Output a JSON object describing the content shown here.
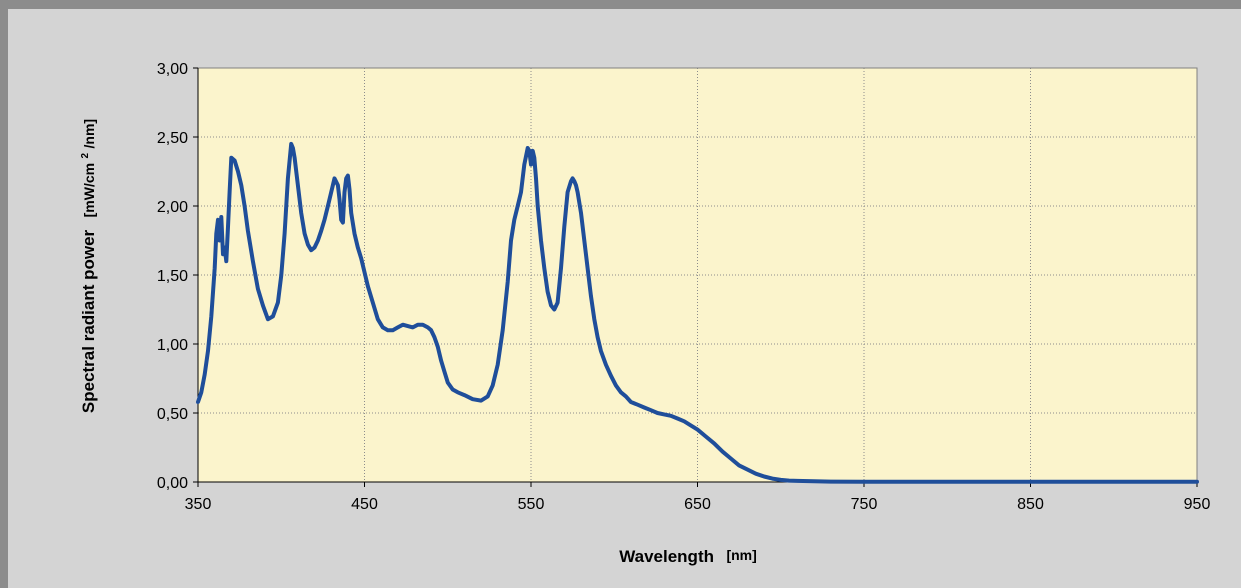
{
  "colors": {
    "outer_border": "#8c8c8c",
    "chart_area": "#d4d4d4",
    "plot_area": "#fbf4cc",
    "series_line": "#1f4e9a",
    "gridline": "#8c8c8c"
  },
  "chart_data": {
    "type": "line",
    "title": "",
    "xlabel": "Wavelength",
    "xlabel_unit": "[nm]",
    "ylabel": "Spectral radiant power",
    "ylabel_unit_pre": "[mW/cm",
    "ylabel_unit_sup": "2",
    "ylabel_unit_post": "/nm]",
    "xlim": [
      350,
      950
    ],
    "ylim": [
      0,
      3
    ],
    "x_ticks": [
      350,
      450,
      550,
      650,
      750,
      850,
      950
    ],
    "x_tick_labels": [
      "350",
      "450",
      "550",
      "650",
      "750",
      "850",
      "950"
    ],
    "y_ticks": [
      0,
      0.5,
      1,
      1.5,
      2,
      2.5,
      3
    ],
    "y_tick_labels": [
      "0,00",
      "0,50",
      "1,00",
      "1,50",
      "2,00",
      "2,50",
      "3,00"
    ],
    "grid": "dotted",
    "legend": "none",
    "series": [
      {
        "x": [
          350,
          352,
          354,
          356,
          358,
          360,
          361,
          362,
          363,
          364,
          365,
          366,
          367,
          368,
          369,
          370,
          372,
          374,
          376,
          378,
          380,
          383,
          386,
          389,
          392,
          395,
          398,
          400,
          402,
          404,
          406,
          407,
          408,
          410,
          412,
          414,
          416,
          418,
          420,
          422,
          424,
          426,
          428,
          430,
          432,
          434,
          435,
          436,
          437,
          438,
          439,
          440,
          441,
          442,
          444,
          446,
          448,
          450,
          452,
          455,
          458,
          461,
          464,
          467,
          470,
          473,
          476,
          479,
          482,
          485,
          488,
          490,
          492,
          494,
          496,
          498,
          500,
          503,
          506,
          510,
          515,
          520,
          524,
          527,
          530,
          533,
          536,
          538,
          540,
          542,
          544,
          546,
          548,
          549,
          550,
          551,
          552,
          553,
          554,
          556,
          558,
          560,
          562,
          564,
          566,
          568,
          570,
          572,
          574,
          575,
          576,
          577,
          578,
          580,
          582,
          584,
          586,
          588,
          590,
          592,
          595,
          598,
          601,
          604,
          607,
          610,
          614,
          618,
          622,
          626,
          630,
          634,
          638,
          642,
          646,
          650,
          655,
          660,
          665,
          670,
          675,
          680,
          685,
          690,
          695,
          700,
          705,
          710,
          720,
          730,
          750,
          800,
          850,
          900,
          950
        ],
        "y": [
          0.58,
          0.65,
          0.78,
          0.95,
          1.2,
          1.55,
          1.8,
          1.9,
          1.75,
          1.92,
          1.65,
          1.7,
          1.6,
          1.85,
          2.1,
          2.35,
          2.33,
          2.25,
          2.15,
          2.0,
          1.82,
          1.6,
          1.4,
          1.28,
          1.18,
          1.2,
          1.3,
          1.5,
          1.8,
          2.2,
          2.45,
          2.42,
          2.35,
          2.15,
          1.95,
          1.8,
          1.72,
          1.68,
          1.7,
          1.75,
          1.82,
          1.9,
          2.0,
          2.1,
          2.2,
          2.15,
          2.05,
          1.9,
          1.88,
          2.1,
          2.2,
          2.22,
          2.12,
          1.95,
          1.8,
          1.7,
          1.62,
          1.52,
          1.42,
          1.3,
          1.18,
          1.12,
          1.1,
          1.1,
          1.12,
          1.14,
          1.13,
          1.12,
          1.14,
          1.14,
          1.12,
          1.1,
          1.05,
          0.98,
          0.88,
          0.8,
          0.72,
          0.67,
          0.65,
          0.63,
          0.6,
          0.59,
          0.62,
          0.7,
          0.85,
          1.1,
          1.45,
          1.75,
          1.9,
          2.0,
          2.1,
          2.3,
          2.42,
          2.4,
          2.3,
          2.4,
          2.35,
          2.2,
          2.0,
          1.75,
          1.55,
          1.38,
          1.28,
          1.25,
          1.3,
          1.55,
          1.85,
          2.1,
          2.18,
          2.2,
          2.18,
          2.15,
          2.1,
          1.95,
          1.75,
          1.55,
          1.35,
          1.18,
          1.05,
          0.95,
          0.85,
          0.77,
          0.7,
          0.65,
          0.62,
          0.58,
          0.56,
          0.54,
          0.52,
          0.5,
          0.49,
          0.48,
          0.46,
          0.44,
          0.41,
          0.38,
          0.33,
          0.28,
          0.22,
          0.17,
          0.12,
          0.09,
          0.06,
          0.04,
          0.025,
          0.015,
          0.01,
          0.008,
          0.005,
          0.003,
          0.002,
          0.002,
          0.002,
          0.002,
          0.002
        ]
      }
    ]
  }
}
